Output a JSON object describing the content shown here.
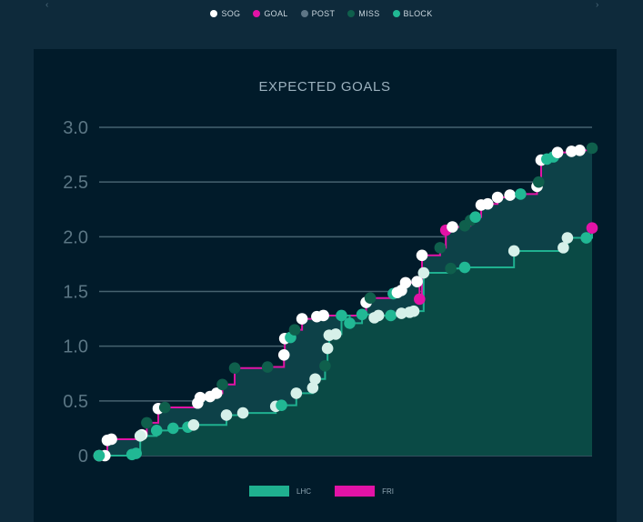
{
  "legend_top": [
    {
      "label": "SOG",
      "color": "#ffffff"
    },
    {
      "label": "GOAL",
      "color": "#e213a6"
    },
    {
      "label": "POST",
      "color": "#5e7686"
    },
    {
      "label": "MISS",
      "color": "#0f5f4c"
    },
    {
      "label": "BLOCK",
      "color": "#21b894"
    }
  ],
  "chart_data": {
    "type": "area",
    "title": "EXPECTED GOALS",
    "ylim": [
      0,
      3
    ],
    "yticks": [
      0,
      0.5,
      1.0,
      1.5,
      2.0,
      2.5,
      3.0
    ],
    "ytick_labels": [
      "0",
      "0.5",
      "1.0",
      "1.5",
      "2.0",
      "2.5",
      "3.0"
    ],
    "xlim": [
      0,
      60
    ],
    "series": [
      {
        "name": "LHC",
        "color": "#1fb08f",
        "fill": "#0a4a45",
        "points": [
          {
            "x": 0.0,
            "y": 0.0,
            "t": "BLOCK"
          },
          {
            "x": 4.0,
            "y": 0.01,
            "t": "BLOCK"
          },
          {
            "x": 4.5,
            "y": 0.02,
            "t": "BLOCK"
          },
          {
            "x": 5.0,
            "y": 0.18,
            "t": "SOG"
          },
          {
            "x": 7.0,
            "y": 0.23,
            "t": "BLOCK"
          },
          {
            "x": 9.0,
            "y": 0.25,
            "t": "BLOCK"
          },
          {
            "x": 10.8,
            "y": 0.26,
            "t": "BLOCK"
          },
          {
            "x": 11.5,
            "y": 0.28,
            "t": "SOG"
          },
          {
            "x": 15.5,
            "y": 0.37,
            "t": "SOG"
          },
          {
            "x": 17.5,
            "y": 0.39,
            "t": "SOG"
          },
          {
            "x": 21.5,
            "y": 0.45,
            "t": "SOG"
          },
          {
            "x": 22.2,
            "y": 0.46,
            "t": "BLOCK"
          },
          {
            "x": 24.0,
            "y": 0.57,
            "t": "SOG"
          },
          {
            "x": 26.0,
            "y": 0.62,
            "t": "SOG"
          },
          {
            "x": 26.3,
            "y": 0.7,
            "t": "SOG"
          },
          {
            "x": 27.5,
            "y": 0.82,
            "t": "MISS"
          },
          {
            "x": 27.8,
            "y": 0.98,
            "t": "SOG"
          },
          {
            "x": 28.0,
            "y": 1.1,
            "t": "SOG"
          },
          {
            "x": 28.8,
            "y": 1.11,
            "t": "SOG"
          },
          {
            "x": 29.5,
            "y": 1.28,
            "t": "BLOCK"
          },
          {
            "x": 30.5,
            "y": 1.21,
            "t": "BLOCK"
          },
          {
            "x": 32.0,
            "y": 1.29,
            "t": "BLOCK"
          },
          {
            "x": 33.5,
            "y": 1.26,
            "t": "SOG"
          },
          {
            "x": 34.0,
            "y": 1.28,
            "t": "SOG"
          },
          {
            "x": 35.5,
            "y": 1.28,
            "t": "BLOCK"
          },
          {
            "x": 36.8,
            "y": 1.3,
            "t": "SOG"
          },
          {
            "x": 37.8,
            "y": 1.31,
            "t": "SOG"
          },
          {
            "x": 38.3,
            "y": 1.32,
            "t": "SOG"
          },
          {
            "x": 39.5,
            "y": 1.67,
            "t": "SOG"
          },
          {
            "x": 42.8,
            "y": 1.71,
            "t": "MISS"
          },
          {
            "x": 44.5,
            "y": 1.72,
            "t": "BLOCK"
          },
          {
            "x": 50.5,
            "y": 1.87,
            "t": "SOG"
          },
          {
            "x": 56.5,
            "y": 1.9,
            "t": "SOG"
          },
          {
            "x": 57.0,
            "y": 1.99,
            "t": "SOG"
          },
          {
            "x": 59.3,
            "y": 1.99,
            "t": "BLOCK"
          }
        ],
        "end": {
          "x": 60.0,
          "y": 2.08,
          "t": "GOAL"
        }
      },
      {
        "name": "FRI",
        "color": "#e213a6",
        "fill": "#0d4148",
        "points": [
          {
            "x": 0.0,
            "y": 0.0,
            "t": "SOG"
          },
          {
            "x": 0.7,
            "y": 0.0,
            "t": "SOG"
          },
          {
            "x": 1.0,
            "y": 0.14,
            "t": "SOG"
          },
          {
            "x": 1.5,
            "y": 0.15,
            "t": "SOG"
          },
          {
            "x": 5.2,
            "y": 0.19,
            "t": "SOG"
          },
          {
            "x": 5.8,
            "y": 0.3,
            "t": "MISS"
          },
          {
            "x": 7.2,
            "y": 0.43,
            "t": "SOG"
          },
          {
            "x": 8.0,
            "y": 0.44,
            "t": "MISS"
          },
          {
            "x": 12.0,
            "y": 0.48,
            "t": "SOG"
          },
          {
            "x": 12.3,
            "y": 0.53,
            "t": "SOG"
          },
          {
            "x": 13.5,
            "y": 0.54,
            "t": "SOG"
          },
          {
            "x": 14.3,
            "y": 0.57,
            "t": "SOG"
          },
          {
            "x": 15.0,
            "y": 0.65,
            "t": "MISS"
          },
          {
            "x": 16.5,
            "y": 0.8,
            "t": "MISS"
          },
          {
            "x": 20.5,
            "y": 0.81,
            "t": "MISS"
          },
          {
            "x": 22.5,
            "y": 0.92,
            "t": "SOG"
          },
          {
            "x": 22.6,
            "y": 1.07,
            "t": "SOG"
          },
          {
            "x": 23.3,
            "y": 1.08,
            "t": "BLOCK"
          },
          {
            "x": 23.8,
            "y": 1.15,
            "t": "MISS"
          },
          {
            "x": 24.7,
            "y": 1.25,
            "t": "SOG"
          },
          {
            "x": 26.5,
            "y": 1.27,
            "t": "SOG"
          },
          {
            "x": 27.3,
            "y": 1.28,
            "t": "SOG"
          },
          {
            "x": 32.5,
            "y": 1.4,
            "t": "SOG"
          },
          {
            "x": 33.0,
            "y": 1.44,
            "t": "MISS"
          },
          {
            "x": 35.8,
            "y": 1.48,
            "t": "BLOCK"
          },
          {
            "x": 36.3,
            "y": 1.49,
            "t": "SOG"
          },
          {
            "x": 36.8,
            "y": 1.51,
            "t": "SOG"
          },
          {
            "x": 37.3,
            "y": 1.58,
            "t": "SOG"
          },
          {
            "x": 38.7,
            "y": 1.59,
            "t": "SOG"
          },
          {
            "x": 39.0,
            "y": 1.43,
            "t": "GOAL"
          },
          {
            "x": 39.3,
            "y": 1.83,
            "t": "SOG"
          },
          {
            "x": 41.5,
            "y": 1.9,
            "t": "MISS"
          },
          {
            "x": 42.2,
            "y": 2.06,
            "t": "GOAL"
          },
          {
            "x": 43.0,
            "y": 2.09,
            "t": "SOG"
          },
          {
            "x": 44.5,
            "y": 2.1,
            "t": "MISS"
          },
          {
            "x": 45.2,
            "y": 2.15,
            "t": "MISS"
          },
          {
            "x": 45.8,
            "y": 2.18,
            "t": "BLOCK"
          },
          {
            "x": 46.5,
            "y": 2.29,
            "t": "SOG"
          },
          {
            "x": 47.3,
            "y": 2.3,
            "t": "SOG"
          },
          {
            "x": 48.5,
            "y": 2.36,
            "t": "SOG"
          },
          {
            "x": 50.0,
            "y": 2.38,
            "t": "SOG"
          },
          {
            "x": 51.3,
            "y": 2.39,
            "t": "BLOCK"
          },
          {
            "x": 53.3,
            "y": 2.46,
            "t": "SOG"
          },
          {
            "x": 53.5,
            "y": 2.5,
            "t": "MISS"
          },
          {
            "x": 53.8,
            "y": 2.7,
            "t": "SOG"
          },
          {
            "x": 54.5,
            "y": 2.71,
            "t": "BLOCK"
          },
          {
            "x": 55.3,
            "y": 2.73,
            "t": "BLOCK"
          },
          {
            "x": 55.8,
            "y": 2.77,
            "t": "SOG"
          },
          {
            "x": 57.5,
            "y": 2.78,
            "t": "SOG"
          },
          {
            "x": 58.5,
            "y": 2.79,
            "t": "SOG"
          }
        ],
        "end": {
          "x": 60.0,
          "y": 2.81,
          "t": "MISS"
        }
      }
    ],
    "legend": [
      {
        "label": "LHC",
        "color": "#1fb08f"
      },
      {
        "label": "FRI",
        "color": "#e213a6"
      }
    ]
  },
  "type_colors": {
    "SOG": "#ffffff",
    "GOAL": "#e213a6",
    "POST": "#5e7686",
    "MISS": "#0f5f4c",
    "BLOCK": "#21b894",
    "LIGHT": "#d6f0e9"
  }
}
